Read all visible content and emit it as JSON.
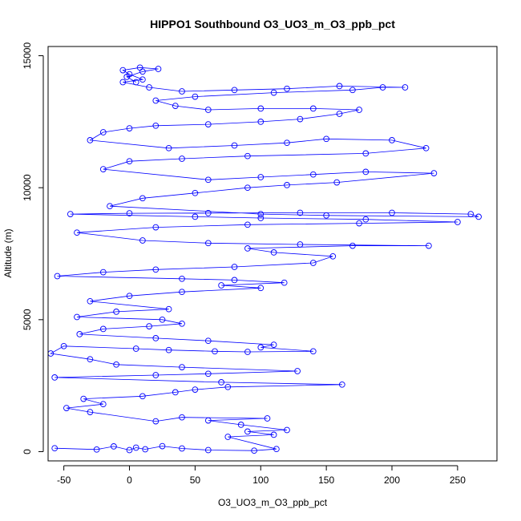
{
  "chart_data": {
    "type": "scatter",
    "title": "HIPPO1 Southbound O3_UO3_m_O3_ppb_pct",
    "xlabel": "O3_UO3_m_O3_ppb_pct",
    "ylabel": "Altitude (m)",
    "xlim": [
      -62,
      280
    ],
    "ylim": [
      -350,
      15350
    ],
    "x_ticks": [
      -50,
      0,
      50,
      100,
      150,
      200,
      250
    ],
    "y_ticks": [
      0,
      5000,
      10000,
      15000
    ],
    "x_tick_labels": [
      "-50",
      "0",
      "50",
      "100",
      "150",
      "200",
      "250"
    ],
    "y_tick_labels": [
      "0",
      "5000",
      "10000",
      "15000"
    ],
    "grid": false,
    "legend": "none",
    "series_color": "#0000ff",
    "marker": "open-circle",
    "connected": true,
    "series": [
      {
        "points": [
          [
            -57,
            130
          ],
          [
            -25,
            80
          ],
          [
            -12,
            200
          ],
          [
            0,
            60
          ],
          [
            5,
            150
          ],
          [
            12,
            90
          ],
          [
            25,
            210
          ],
          [
            40,
            120
          ],
          [
            60,
            60
          ],
          [
            95,
            40
          ],
          [
            112,
            100
          ],
          [
            75,
            560
          ],
          [
            110,
            640
          ],
          [
            90,
            760
          ],
          [
            120,
            820
          ],
          [
            85,
            1020
          ],
          [
            60,
            1180
          ],
          [
            105,
            1260
          ],
          [
            40,
            1300
          ],
          [
            20,
            1150
          ],
          [
            -30,
            1500
          ],
          [
            -48,
            1650
          ],
          [
            -20,
            1800
          ],
          [
            -35,
            2000
          ],
          [
            10,
            2100
          ],
          [
            35,
            2250
          ],
          [
            50,
            2350
          ],
          [
            75,
            2450
          ],
          [
            162,
            2540
          ],
          [
            70,
            2630
          ],
          [
            -57,
            2810
          ],
          [
            20,
            2900
          ],
          [
            60,
            2950
          ],
          [
            128,
            3050
          ],
          [
            40,
            3200
          ],
          [
            -10,
            3300
          ],
          [
            -30,
            3500
          ],
          [
            -60,
            3720
          ],
          [
            -50,
            4000
          ],
          [
            5,
            3900
          ],
          [
            30,
            3850
          ],
          [
            65,
            3800
          ],
          [
            90,
            3780
          ],
          [
            140,
            3800
          ],
          [
            100,
            3950
          ],
          [
            110,
            4050
          ],
          [
            60,
            4200
          ],
          [
            20,
            4300
          ],
          [
            -38,
            4450
          ],
          [
            -20,
            4650
          ],
          [
            15,
            4750
          ],
          [
            40,
            4850
          ],
          [
            25,
            5000
          ],
          [
            -40,
            5100
          ],
          [
            -10,
            5300
          ],
          [
            30,
            5400
          ],
          [
            -30,
            5700
          ],
          [
            0,
            5900
          ],
          [
            40,
            6050
          ],
          [
            100,
            6200
          ],
          [
            70,
            6300
          ],
          [
            118,
            6400
          ],
          [
            80,
            6500
          ],
          [
            40,
            6550
          ],
          [
            -55,
            6650
          ],
          [
            -20,
            6800
          ],
          [
            20,
            6900
          ],
          [
            80,
            7000
          ],
          [
            140,
            7150
          ],
          [
            155,
            7400
          ],
          [
            110,
            7550
          ],
          [
            90,
            7700
          ],
          [
            170,
            7800
          ],
          [
            228,
            7800
          ],
          [
            130,
            7850
          ],
          [
            60,
            7900
          ],
          [
            10,
            8000
          ],
          [
            -40,
            8300
          ],
          [
            20,
            8500
          ],
          [
            90,
            8600
          ],
          [
            175,
            8650
          ],
          [
            250,
            8700
          ],
          [
            180,
            8800
          ],
          [
            100,
            8850
          ],
          [
            50,
            8900
          ],
          [
            -45,
            9000
          ],
          [
            0,
            9030
          ],
          [
            60,
            9040
          ],
          [
            130,
            9050
          ],
          [
            200,
            9050
          ],
          [
            260,
            9000
          ],
          [
            266,
            8900
          ],
          [
            150,
            8950
          ],
          [
            100,
            9000
          ],
          [
            -15,
            9300
          ],
          [
            10,
            9600
          ],
          [
            50,
            9800
          ],
          [
            90,
            10000
          ],
          [
            120,
            10100
          ],
          [
            158,
            10200
          ],
          [
            232,
            10550
          ],
          [
            180,
            10600
          ],
          [
            140,
            10500
          ],
          [
            100,
            10400
          ],
          [
            60,
            10300
          ],
          [
            -20,
            10700
          ],
          [
            0,
            11000
          ],
          [
            40,
            11100
          ],
          [
            90,
            11200
          ],
          [
            180,
            11300
          ],
          [
            226,
            11500
          ],
          [
            200,
            11800
          ],
          [
            150,
            11850
          ],
          [
            120,
            11700
          ],
          [
            80,
            11600
          ],
          [
            30,
            11500
          ],
          [
            -30,
            11800
          ],
          [
            -20,
            12100
          ],
          [
            0,
            12250
          ],
          [
            20,
            12350
          ],
          [
            60,
            12400
          ],
          [
            100,
            12500
          ],
          [
            130,
            12600
          ],
          [
            160,
            12800
          ],
          [
            175,
            12950
          ],
          [
            140,
            13000
          ],
          [
            100,
            13000
          ],
          [
            60,
            12950
          ],
          [
            35,
            13100
          ],
          [
            20,
            13300
          ],
          [
            50,
            13450
          ],
          [
            110,
            13600
          ],
          [
            170,
            13700
          ],
          [
            193,
            13800
          ],
          [
            210,
            13800
          ],
          [
            160,
            13850
          ],
          [
            120,
            13750
          ],
          [
            80,
            13700
          ],
          [
            40,
            13650
          ],
          [
            15,
            13800
          ],
          [
            -5,
            14000
          ],
          [
            10,
            14100
          ],
          [
            0,
            14300
          ],
          [
            -5,
            14450
          ],
          [
            8,
            14550
          ],
          [
            22,
            14500
          ],
          [
            10,
            14400
          ],
          [
            -2,
            14200
          ],
          [
            5,
            14000
          ]
        ]
      }
    ]
  }
}
